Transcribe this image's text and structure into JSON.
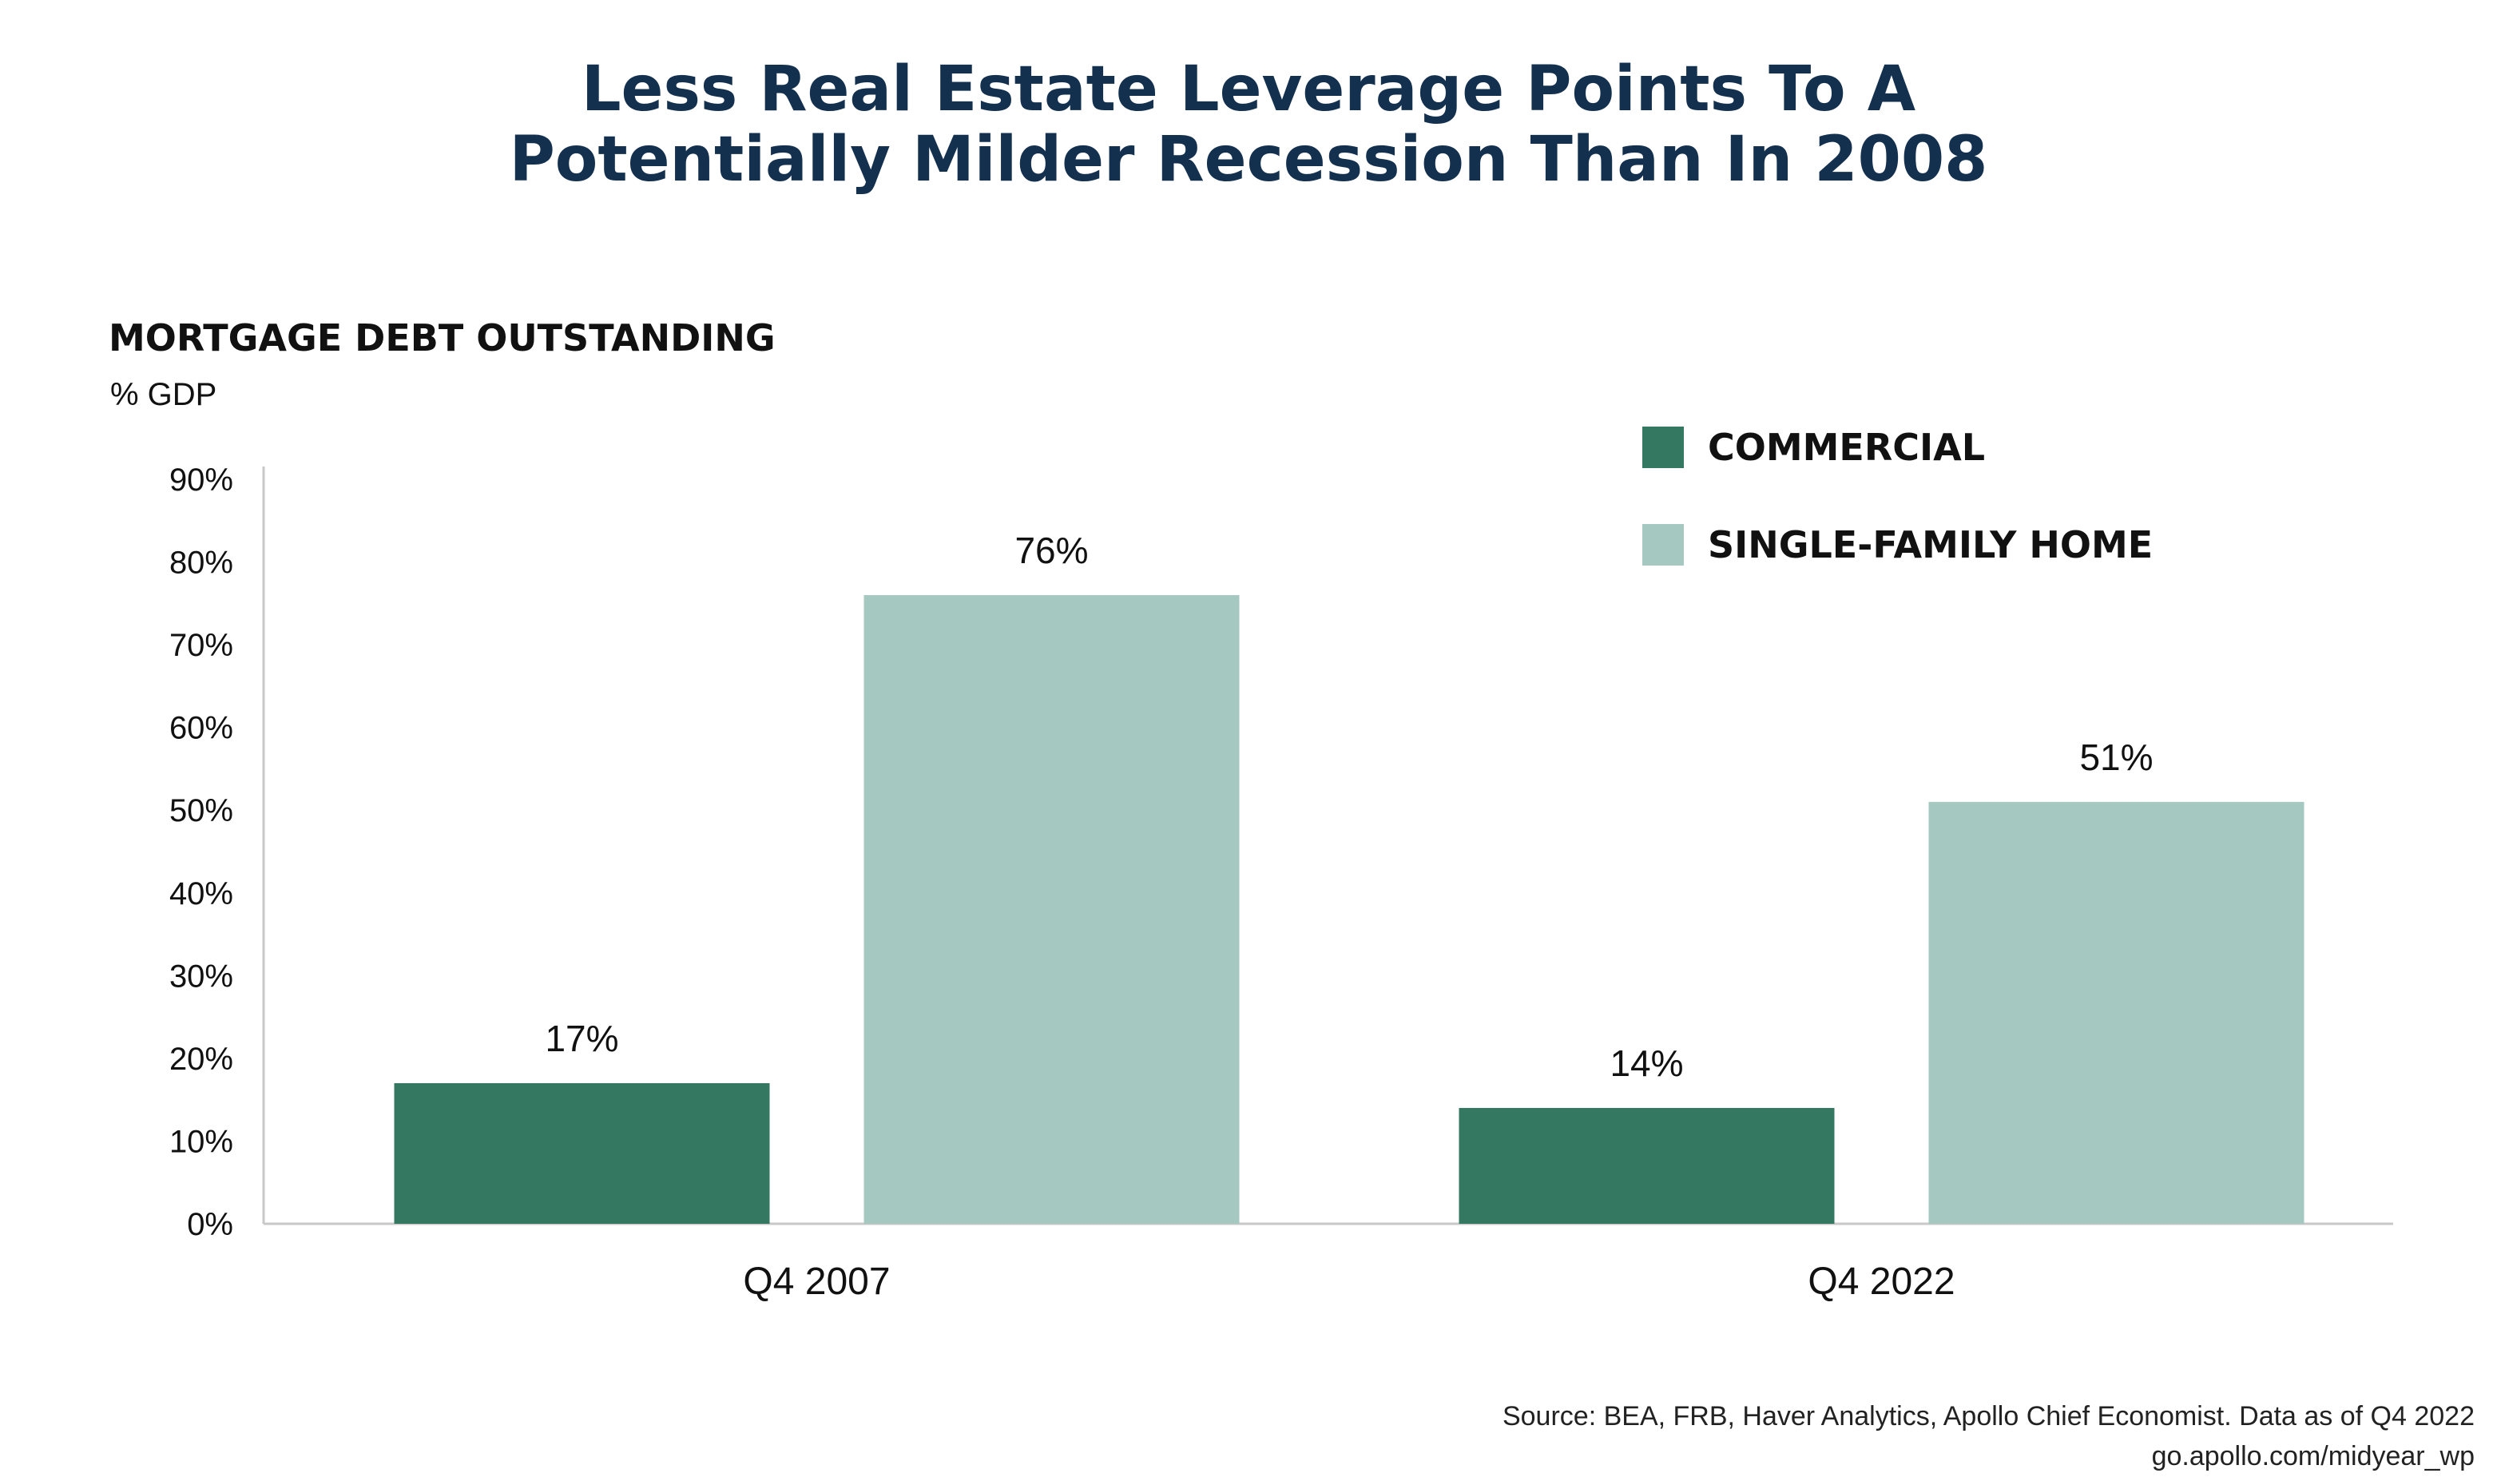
{
  "title_lines": [
    "Less Real Estate Leverage Points To A",
    "Potentially Milder Recession Than In 2008"
  ],
  "source_lines": [
    "Source: BEA, FRB, Haver Analytics, Apollo Chief Economist. Data as of Q4 2022",
    "go.apollo.com/midyear_wp"
  ],
  "colors": {
    "commercial": "#347862",
    "single_family": "#a5c9c0",
    "title": "#14304f",
    "axis": "#c8c8c8",
    "text": "#111111"
  },
  "chart_data": {
    "type": "bar",
    "title": "Less Real Estate Leverage Points To A Potentially Milder Recession Than In 2008",
    "subtitle": "MORTGAGE DEBT OUTSTANDING",
    "ylabel": "% GDP",
    "xlabel": "",
    "categories": [
      "Q4 2007",
      "Q4 2022"
    ],
    "series": [
      {
        "name": "COMMERCIAL",
        "values": [
          17,
          14
        ],
        "labels": [
          "17%",
          "14%"
        ],
        "color": "#347862"
      },
      {
        "name": "SINGLE-FAMILY HOME",
        "values": [
          76,
          51
        ],
        "labels": [
          "76%",
          "51%"
        ],
        "color": "#a5c9c0"
      }
    ],
    "ylim": [
      0,
      90
    ],
    "yticks": [
      0,
      10,
      20,
      30,
      40,
      50,
      60,
      70,
      80,
      90
    ],
    "ytick_labels": [
      "0%",
      "10%",
      "20%",
      "30%",
      "40%",
      "50%",
      "60%",
      "70%",
      "80%",
      "90%"
    ],
    "grid": false,
    "legend": "top-right"
  }
}
